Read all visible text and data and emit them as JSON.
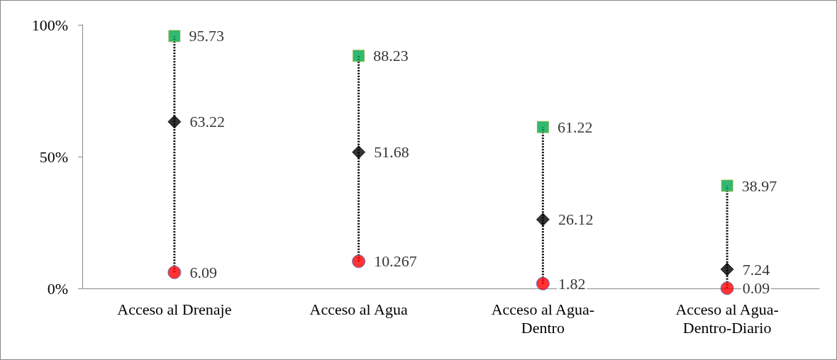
{
  "chart_data": {
    "type": "scatter",
    "categories": [
      "Acceso al Drenaje",
      "Acceso al Agua",
      "Acceso al Agua-Dentro",
      "Acceso al Agua-Dentro-Diario"
    ],
    "series": [
      {
        "color": "#00a651",
        "marker": "square",
        "values": [
          95.73,
          88.23,
          61.22,
          38.97
        ]
      },
      {
        "color": "#000000",
        "marker": "diamond",
        "values": [
          63.22,
          51.68,
          26.12,
          7.24
        ]
      },
      {
        "color": "#ff0000",
        "marker": "circle",
        "values": [
          6.09,
          10.267,
          1.82,
          0.09
        ]
      }
    ],
    "ylim": [
      0,
      100
    ],
    "yticks": [
      {
        "value": 0,
        "label": "0%"
      },
      {
        "value": 50,
        "label": "50%"
      },
      {
        "value": 100,
        "label": "100%"
      }
    ],
    "data_labels": true,
    "line_style": "dotted"
  }
}
